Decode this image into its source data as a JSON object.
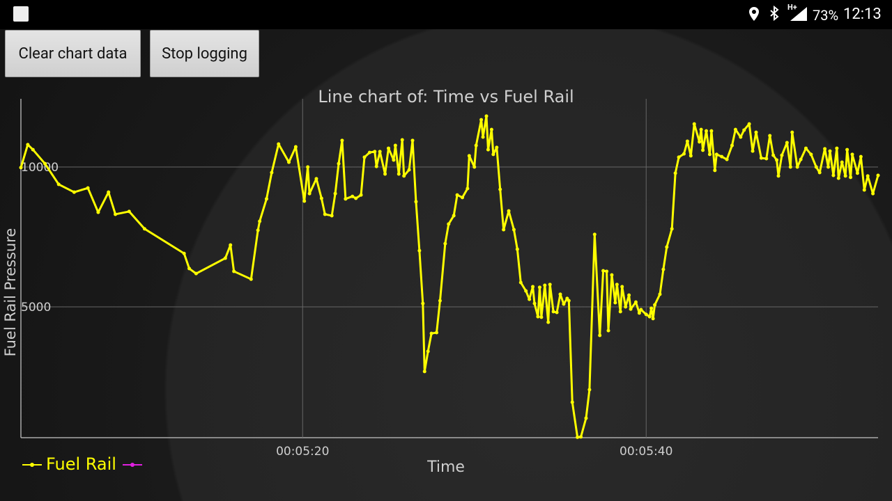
{
  "status_bar": {
    "network": "H+",
    "battery": "73%",
    "time": "12:13"
  },
  "buttons": [
    "Clear chart data",
    "Stop logging"
  ],
  "chart_data": {
    "type": "line",
    "title": "Line chart of: Time vs Fuel Rail",
    "x_label": "Time",
    "y_label": "Fuel Rail Pressure",
    "x": [
      303.6,
      304.0,
      304.3,
      305.0,
      305.8,
      306.7,
      307.5,
      308.1,
      308.7,
      309.1,
      309.9,
      310.8,
      313.1,
      313.4,
      313.8,
      315.5,
      315.8,
      316.0,
      317.0,
      317.4,
      317.5,
      317.9,
      318.2,
      318.6,
      319.2,
      319.6,
      320.1,
      320.3,
      320.4,
      320.8,
      321.1,
      321.3,
      321.7,
      321.9,
      322.1,
      322.3,
      322.5,
      322.9,
      323.1,
      323.4,
      323.6,
      323.9,
      324.2,
      324.3,
      324.5,
      324.8,
      325.0,
      325.3,
      325.4,
      325.6,
      325.8,
      325.9,
      326.2,
      326.4,
      326.6,
      326.8,
      327.0,
      327.1,
      327.3,
      327.5,
      327.8,
      328.0,
      328.3,
      328.5,
      328.8,
      329.0,
      329.3,
      329.6,
      329.7,
      330.0,
      330.1,
      330.4,
      330.5,
      330.7,
      330.8,
      331.0,
      331.1,
      331.3,
      331.5,
      331.7,
      332.0,
      332.3,
      332.5,
      332.7,
      333.0,
      333.2,
      333.4,
      333.5,
      333.7,
      333.8,
      333.9,
      334.1,
      334.3,
      334.4,
      334.6,
      334.8,
      335.0,
      335.2,
      335.4,
      335.5,
      335.7,
      336.0,
      336.2,
      336.5,
      336.7,
      337.0,
      337.3,
      337.5,
      337.7,
      337.8,
      338.0,
      338.2,
      338.3,
      338.5,
      338.6,
      338.8,
      339.0,
      339.1,
      339.4,
      339.6,
      339.7,
      340.0,
      340.2,
      340.3,
      340.4,
      340.5,
      340.8,
      341.0,
      341.2,
      341.5,
      341.7,
      341.9,
      342.2,
      342.4,
      342.6,
      342.8,
      343.1,
      343.2,
      343.3,
      343.5,
      343.7,
      343.8,
      344.0,
      344.1,
      344.4,
      344.7,
      345.0,
      345.2,
      345.5,
      345.7,
      346.0,
      346.2,
      346.4,
      346.7,
      347.0,
      347.2,
      347.4,
      347.6,
      347.7,
      347.9,
      348.2,
      348.4,
      348.5,
      348.8,
      349.0,
      349.3,
      349.6,
      349.9,
      350.1,
      350.4,
      350.6,
      350.7,
      350.9,
      351.1,
      351.2,
      351.4,
      351.6,
      351.7,
      351.9,
      352.0,
      352.3,
      352.5,
      352.7,
      352.9,
      353.2,
      353.5
    ],
    "series": [
      {
        "name": "Fuel Rail",
        "color": "#ffff00",
        "values": [
          9980,
          10800,
          10620,
          10120,
          9380,
          9100,
          9250,
          8380,
          9100,
          8310,
          8410,
          7790,
          6910,
          6370,
          6190,
          6740,
          7210,
          6270,
          5990,
          7740,
          8060,
          8860,
          9800,
          10820,
          10170,
          10720,
          8780,
          10000,
          9050,
          9580,
          8880,
          8310,
          8260,
          9050,
          10120,
          10950,
          8860,
          8950,
          8880,
          9000,
          10350,
          10520,
          10550,
          10020,
          10550,
          9750,
          10670,
          10250,
          10770,
          9750,
          10970,
          9680,
          9900,
          10950,
          8760,
          7010,
          5120,
          2690,
          3410,
          4050,
          4080,
          5220,
          7260,
          7960,
          8260,
          9000,
          8910,
          9230,
          10400,
          10000,
          10770,
          11690,
          11070,
          11820,
          10620,
          11340,
          10450,
          10700,
          9200,
          7760,
          8430,
          7760,
          7060,
          5870,
          5570,
          5270,
          5720,
          5120,
          4650,
          5700,
          4630,
          5770,
          4450,
          5800,
          4830,
          4800,
          5450,
          5100,
          5300,
          5220,
          1590,
          340,
          350,
          1020,
          2040,
          7590,
          3980,
          6290,
          6270,
          4150,
          6140,
          5150,
          5800,
          4830,
          5720,
          5000,
          5420,
          4920,
          5170,
          4780,
          4900,
          4730,
          4650,
          4950,
          4580,
          5070,
          5450,
          6340,
          7140,
          7790,
          9780,
          10350,
          10470,
          10920,
          10400,
          11540,
          10900,
          11340,
          10600,
          11290,
          10450,
          11290,
          9880,
          10450,
          10370,
          10270,
          10770,
          11340,
          11070,
          11320,
          11540,
          10570,
          11240,
          10320,
          10300,
          11120,
          10420,
          10250,
          9680,
          10420,
          10870,
          10000,
          11240,
          10000,
          10270,
          10670,
          10450,
          10000,
          9800,
          10650,
          10000,
          10570,
          9700,
          10670,
          9600,
          10170,
          9680,
          10620,
          9630,
          10450,
          9780,
          10370,
          9180,
          9680,
          9050,
          9700
        ]
      }
    ],
    "xlim": [
      303.6,
      353.5
    ],
    "xticks": [
      {
        "value": 320,
        "label": "00:05:20"
      },
      {
        "value": 340,
        "label": "00:05:40"
      }
    ],
    "ylim": [
      323,
      12438
    ],
    "yticks": [
      5000,
      10000
    ],
    "grid": true,
    "legend": "bottom-left"
  }
}
